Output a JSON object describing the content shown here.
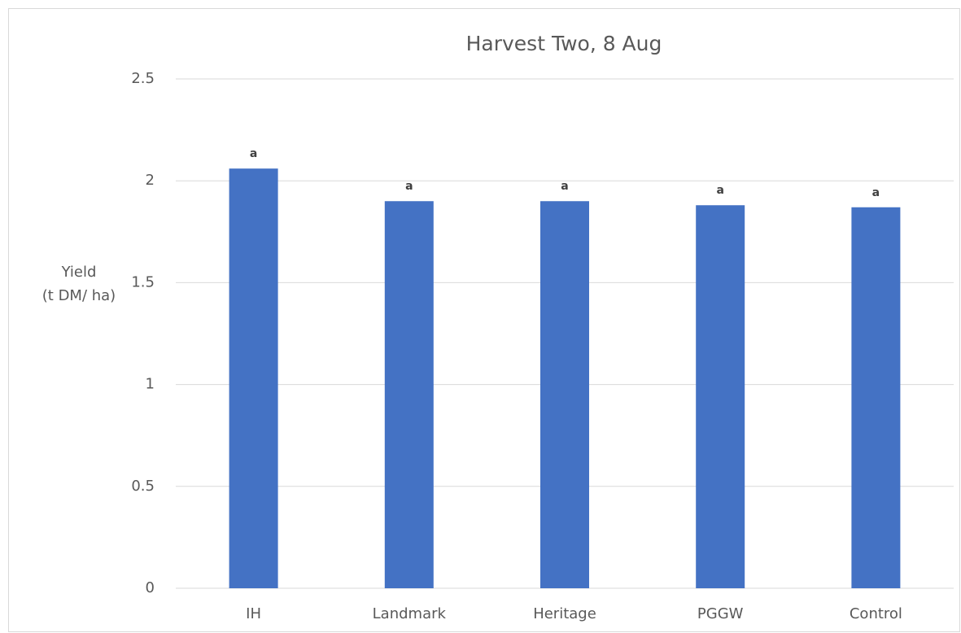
{
  "chart_data": {
    "type": "bar",
    "title": "Harvest Two, 8 Aug",
    "ylabel": [
      "Yield",
      "(t DM/ ha)"
    ],
    "categories": [
      "IH",
      "Landmark",
      "Heritage",
      "PGGW",
      "Control"
    ],
    "values": [
      2.06,
      1.9,
      1.9,
      1.88,
      1.87
    ],
    "annotations": [
      "a",
      "a",
      "a",
      "a",
      "a"
    ],
    "color": "#4472c4",
    "ylim": [
      0,
      2.5
    ],
    "yticks": [
      0,
      0.5,
      1,
      1.5,
      2,
      2.5
    ],
    "grid": true
  }
}
